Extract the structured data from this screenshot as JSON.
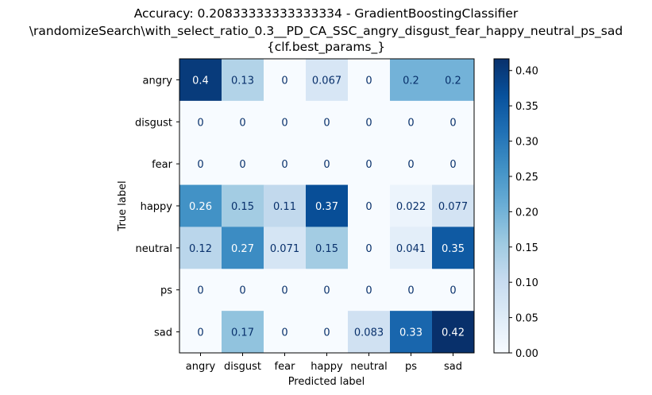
{
  "chart_data": {
    "type": "heatmap",
    "title_lines": [
      "Accuracy: 0.20833333333333334 - GradientBoostingClassifier",
      "\\randomizeSearch\\with_select_ratio_0.3__PD_CA_SSC_angry_disgust_fear_happy_neutral_ps_sad",
      "{clf.best_params_}"
    ],
    "xlabel": "Predicted label",
    "ylabel": "True label",
    "x_categories": [
      "angry",
      "disgust",
      "fear",
      "happy",
      "neutral",
      "ps",
      "sad"
    ],
    "y_categories": [
      "angry",
      "disgust",
      "fear",
      "happy",
      "neutral",
      "ps",
      "sad"
    ],
    "values": [
      [
        0.4,
        0.13,
        0,
        0.067,
        0,
        0.2,
        0.2
      ],
      [
        0,
        0,
        0,
        0,
        0,
        0,
        0
      ],
      [
        0,
        0,
        0,
        0,
        0,
        0,
        0
      ],
      [
        0.26,
        0.15,
        0.11,
        0.37,
        0,
        0.022,
        0.077
      ],
      [
        0.12,
        0.27,
        0.071,
        0.15,
        0,
        0.041,
        0.35
      ],
      [
        0,
        0,
        0,
        0,
        0,
        0,
        0
      ],
      [
        0,
        0.17,
        0,
        0,
        0.083,
        0.33,
        0.42
      ]
    ],
    "cell_labels": [
      [
        "0.4",
        "0.13",
        "0",
        "0.067",
        "0",
        "0.2",
        "0.2"
      ],
      [
        "0",
        "0",
        "0",
        "0",
        "0",
        "0",
        "0"
      ],
      [
        "0",
        "0",
        "0",
        "0",
        "0",
        "0",
        "0"
      ],
      [
        "0.26",
        "0.15",
        "0.11",
        "0.37",
        "0",
        "0.022",
        "0.077"
      ],
      [
        "0.12",
        "0.27",
        "0.071",
        "0.15",
        "0",
        "0.041",
        "0.35"
      ],
      [
        "0",
        "0",
        "0",
        "0",
        "0",
        "0",
        "0"
      ],
      [
        "0",
        "0.17",
        "0",
        "0",
        "0.083",
        "0.33",
        "0.42"
      ]
    ],
    "colormap": "Blues",
    "color_range": [
      0,
      0.4166
    ],
    "colorbar_ticks": [
      "0.00",
      "0.05",
      "0.10",
      "0.15",
      "0.20",
      "0.25",
      "0.30",
      "0.35",
      "0.40"
    ],
    "colorbar_tick_values": [
      0,
      0.05,
      0.1,
      0.15,
      0.2,
      0.25,
      0.3,
      0.35,
      0.4
    ],
    "text_color_light": "#ffffff",
    "text_color_dark": "#08306b"
  }
}
